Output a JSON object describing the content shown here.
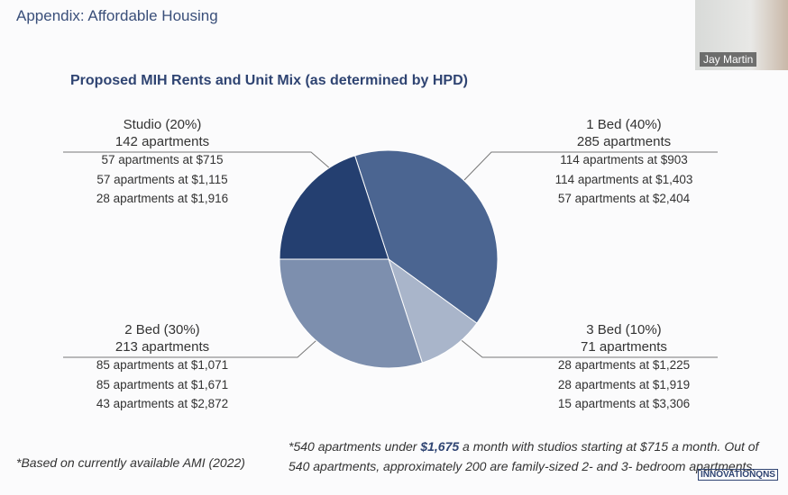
{
  "heading": "Appendix: Affordable Housing",
  "video": {
    "participant_name": "Jay Martin"
  },
  "chart_data": {
    "type": "pie",
    "title": "Proposed MIH Rents and Unit Mix (as determined by HPD)",
    "slices": [
      {
        "label": "1 Bed (40%)",
        "value": 40,
        "count": "285 apartments",
        "color": "#4b6591",
        "rents": [
          "114 apartments at $903",
          "114 apartments at $1,403",
          "57 apartments at $2,404"
        ]
      },
      {
        "label": "3 Bed (10%)",
        "value": 10,
        "count": "71 apartments",
        "color": "#a9b5ca",
        "rents": [
          "28 apartments at $1,225",
          "28 apartments at $1,919",
          "15 apartments at $3,306"
        ]
      },
      {
        "label": "2 Bed (30%)",
        "value": 30,
        "count": "213 apartments",
        "color": "#7d8fae",
        "rents": [
          "85 apartments at $1,071",
          "85 apartments at $1,671",
          "43 apartments at $2,872"
        ]
      },
      {
        "label": "Studio (20%)",
        "value": 20,
        "count": "142 apartments",
        "color": "#243f70",
        "rents": [
          "57 apartments at $715",
          "57 apartments at $1,115",
          "28 apartments at $1,916"
        ]
      }
    ]
  },
  "footnotes": {
    "left": "*Based on currently available AMI (2022)",
    "right_pre": "*540 apartments under ",
    "right_bold": "$1,675",
    "right_post": " a month with studios starting at $715 a month. Out of 540 apartments, approximately 200 are family-sized 2- and 3- bedroom apartments."
  },
  "logo": "INNOVATIONQNS"
}
